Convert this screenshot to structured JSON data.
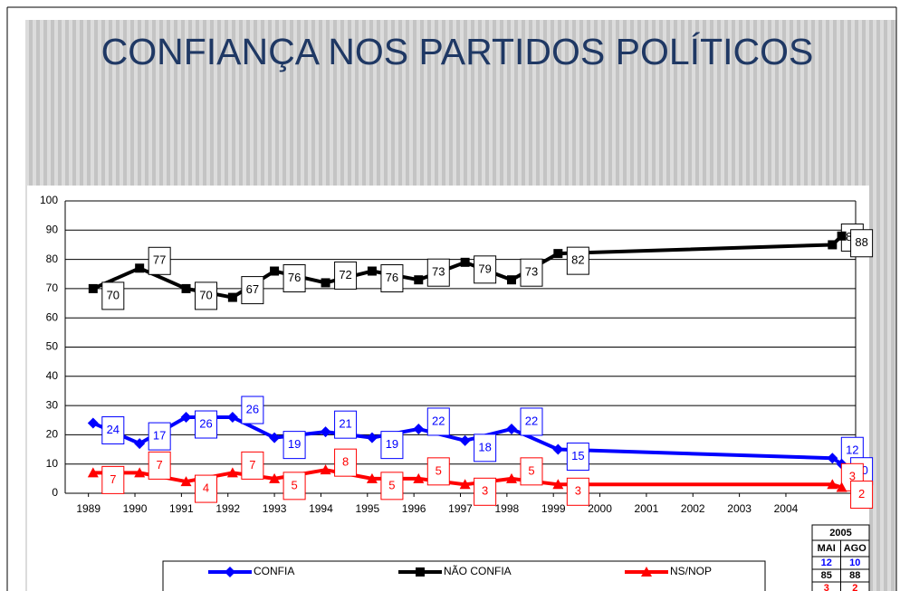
{
  "chart_data": {
    "type": "line",
    "title": "CONFIANÇA NOS PARTIDOS POLÍTICOS",
    "x": [
      1989.1,
      1990.1,
      1991.1,
      1992.1,
      1993.0,
      1994.1,
      1995.1,
      1996.1,
      1997.1,
      1998.1,
      1999.1,
      2005.0,
      2005.2
    ],
    "series": [
      {
        "name": "CONFIA",
        "color": "#0000ff",
        "values": [
          24,
          17,
          26,
          26,
          19,
          21,
          19,
          22,
          18,
          22,
          15,
          12,
          10
        ]
      },
      {
        "name": "NÃO CONFIA",
        "color": "#000000",
        "values": [
          70,
          77,
          70,
          67,
          76,
          72,
          76,
          73,
          79,
          73,
          82,
          85,
          88
        ]
      },
      {
        "name": "NS/NOP",
        "color": "#ff0000",
        "values": [
          7,
          7,
          4,
          7,
          5,
          8,
          5,
          5,
          3,
          5,
          3,
          3,
          2
        ]
      }
    ],
    "xlim": [
      1988.5,
      2005.5
    ],
    "xticks": [
      1989,
      1990,
      1991,
      1992,
      1993,
      1994,
      1995,
      1996,
      1997,
      1998,
      1999,
      2000,
      2001,
      2002,
      2003,
      2004
    ],
    "ylim": [
      0,
      100
    ],
    "yticks": [
      0,
      10,
      20,
      30,
      40,
      50,
      60,
      70,
      80,
      90,
      100
    ],
    "grid": true,
    "legend": "bottom",
    "table": {
      "title": "2005",
      "columns": [
        "MAI",
        "AGO"
      ],
      "rows": [
        [
          "12",
          "10"
        ],
        [
          "85",
          "88"
        ],
        [
          "3",
          "2"
        ]
      ]
    }
  }
}
